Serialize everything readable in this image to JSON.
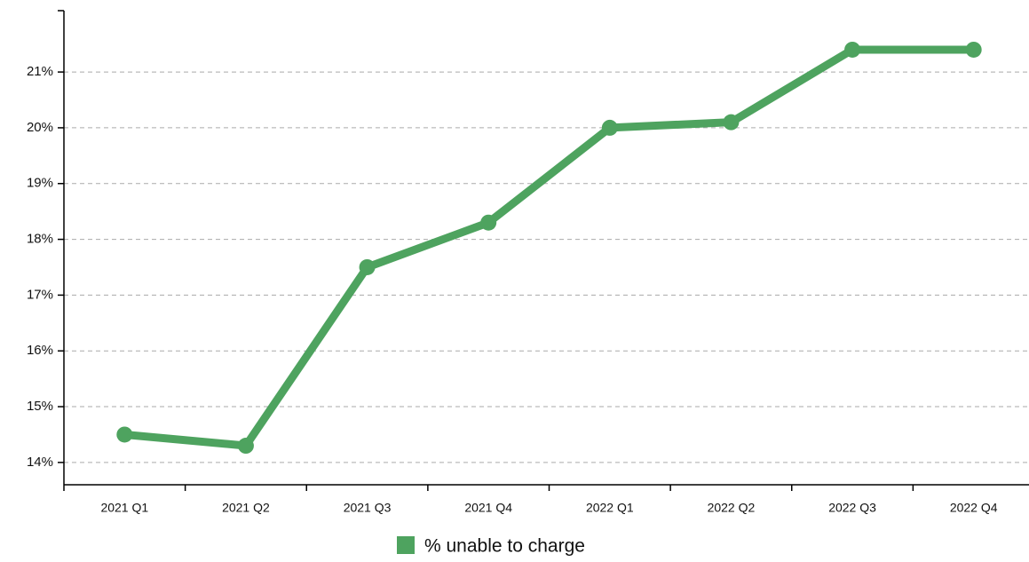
{
  "chart_data": {
    "type": "line",
    "categories": [
      "2021 Q1",
      "2021 Q2",
      "2021 Q3",
      "2021 Q4",
      "2022 Q1",
      "2022 Q2",
      "2022 Q3",
      "2022 Q4"
    ],
    "series": [
      {
        "name": "% unable to charge",
        "color": "#4ea35f",
        "values": [
          14.5,
          14.3,
          17.5,
          18.3,
          20.0,
          20.1,
          21.4,
          21.4
        ]
      }
    ],
    "ylim": [
      13.6,
      22.1
    ],
    "yticks": [
      {
        "value": 14,
        "label": "14%"
      },
      {
        "value": 15,
        "label": "15%"
      },
      {
        "value": 16,
        "label": "16%"
      },
      {
        "value": 17,
        "label": "17%"
      },
      {
        "value": 18,
        "label": "18%"
      },
      {
        "value": 19,
        "label": "19%"
      },
      {
        "value": 20,
        "label": "20%"
      },
      {
        "value": 21,
        "label": "21%"
      }
    ],
    "grid": true,
    "legend": "bottom"
  }
}
